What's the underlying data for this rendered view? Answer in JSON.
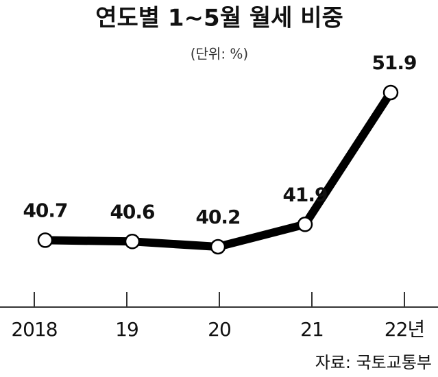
{
  "chart_data": {
    "type": "line",
    "title": "연도별 1~5월 월세 비중",
    "subtitle": "(단위: %)",
    "categories": [
      "2018",
      "19",
      "20",
      "21",
      "22년"
    ],
    "series": [
      {
        "name": "월세 비중",
        "color": "#000000",
        "values": [
          40.7,
          40.6,
          40.2,
          41.9,
          51.9
        ]
      }
    ],
    "source": "자료: 국토교통부"
  }
}
